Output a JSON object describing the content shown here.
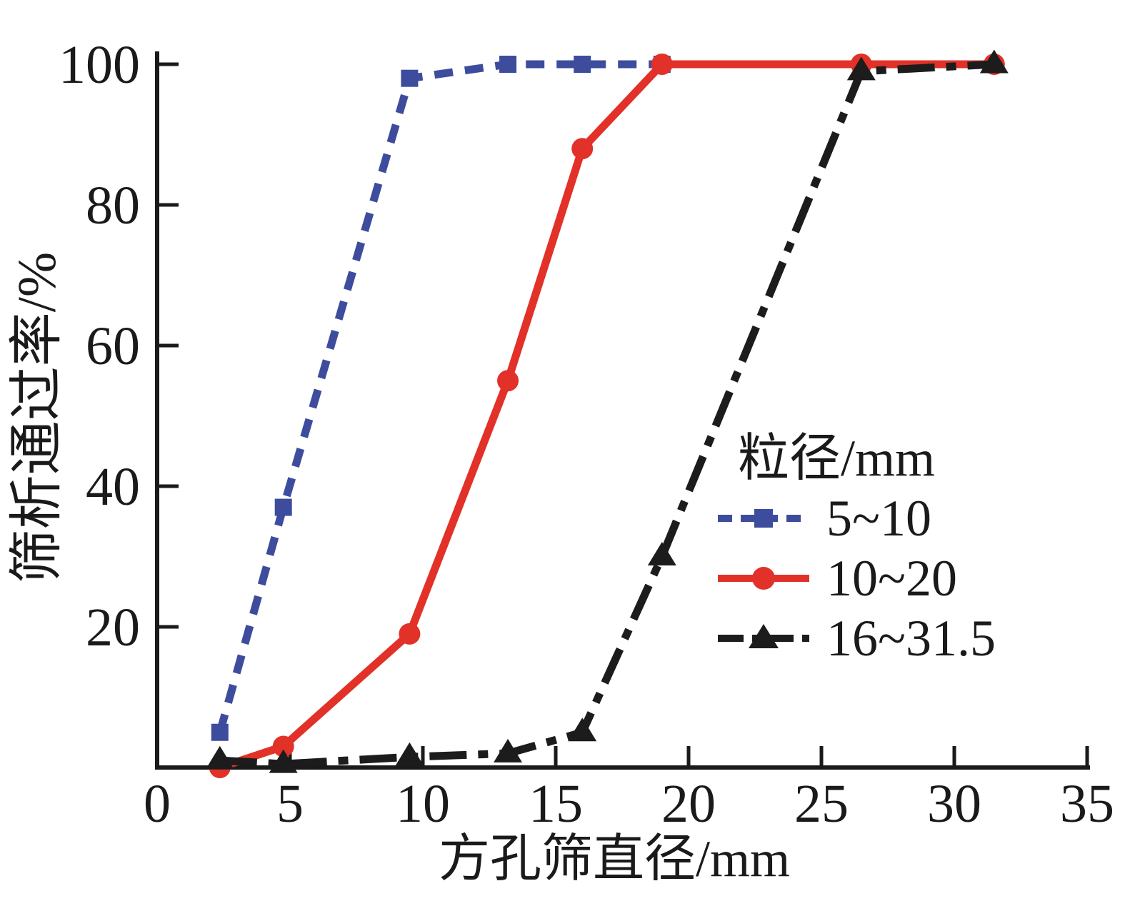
{
  "figure": {
    "background": "#ffffff",
    "text_color": "#1a1a1a"
  },
  "chart_data": {
    "type": "line",
    "title": "",
    "xlabel": "方孔筛直径/mm",
    "ylabel": "筛析通过率/%",
    "xlim": [
      0,
      35
    ],
    "ylim": [
      0,
      100
    ],
    "x_ticks": [
      0,
      5,
      10,
      15,
      20,
      25,
      30,
      35
    ],
    "y_ticks": [
      20,
      40,
      60,
      80,
      100
    ],
    "grid": false,
    "axis_color": "#1a1a1a",
    "legend": {
      "title": "粒径/mm",
      "position": "inside right",
      "entries": [
        "5~10",
        "10~20",
        "16~31.5"
      ]
    },
    "series": [
      {
        "name": "5~10",
        "color": "#3E4C9D",
        "line_style": "dashed",
        "marker": "square",
        "x": [
          2.36,
          4.75,
          9.5,
          13.2,
          16,
          19
        ],
        "y": [
          5,
          37,
          98,
          100,
          100,
          100
        ]
      },
      {
        "name": "10~20",
        "color": "#E23128",
        "line_style": "solid",
        "marker": "circle",
        "x": [
          2.36,
          4.75,
          9.5,
          13.2,
          16,
          19,
          26.5,
          31.5
        ],
        "y": [
          0,
          3,
          19,
          55,
          88,
          100,
          100,
          100
        ]
      },
      {
        "name": "16~31.5",
        "color": "#1C1C1C",
        "line_style": "dashdot",
        "marker": "triangle",
        "x": [
          2.36,
          4.75,
          9.5,
          13.2,
          16,
          19,
          26.5,
          31.5
        ],
        "y": [
          1,
          0.5,
          1.5,
          2,
          5,
          30,
          99,
          100
        ]
      }
    ]
  }
}
